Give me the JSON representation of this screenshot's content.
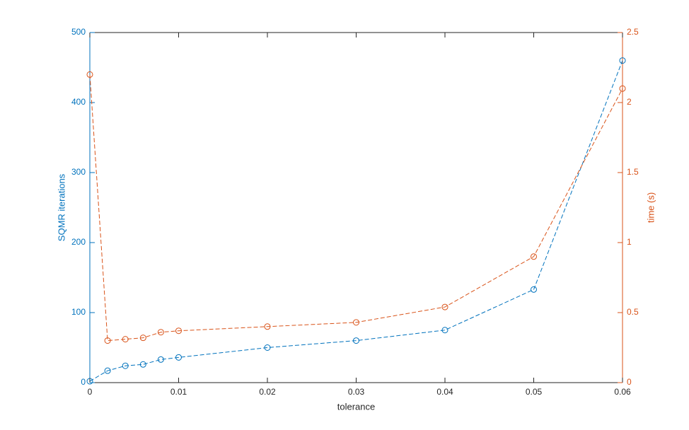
{
  "chart_data": {
    "type": "line",
    "x": [
      0,
      0.002,
      0.004,
      0.006,
      0.008,
      0.01,
      0.02,
      0.03,
      0.04,
      0.05,
      0.06
    ],
    "series": [
      {
        "name": "SQMR iterations",
        "color": "#0072bd",
        "values": [
          2,
          17,
          24,
          26,
          33,
          36,
          50,
          60,
          75,
          133,
          460
        ]
      },
      {
        "name": "time (s)",
        "color": "#d95319",
        "axis": "y2",
        "values": [
          2.2,
          0.3,
          0.31,
          0.32,
          0.36,
          0.37,
          0.4,
          0.43,
          0.54,
          0.9,
          2.1
        ]
      }
    ],
    "xlabel": "tolerance",
    "ylabel": "SQMR iterations",
    "y2label": "time (s)",
    "xlim": [
      0,
      0.06
    ],
    "xticks": [
      0,
      0.01,
      0.02,
      0.03,
      0.04,
      0.05,
      0.06
    ],
    "ylim": [
      0,
      500
    ],
    "yticks": [
      0,
      100,
      200,
      300,
      400,
      500
    ],
    "y2lim": [
      0,
      2.5
    ],
    "y2ticks": [
      0,
      0.5,
      1,
      1.5,
      2,
      2.5
    ]
  }
}
